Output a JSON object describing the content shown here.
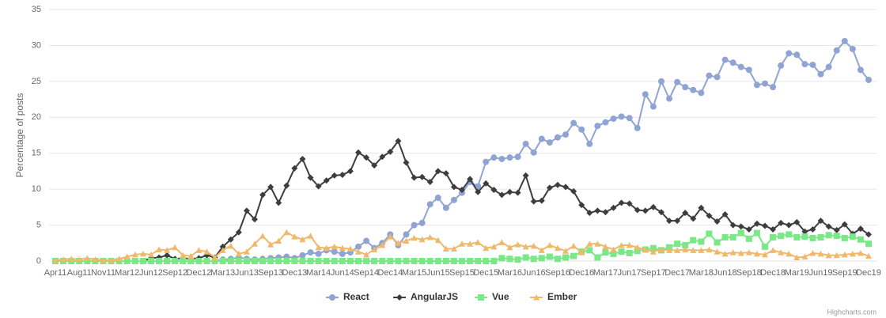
{
  "chart_data": {
    "type": "line",
    "y_axis_label": "Percentage of posts",
    "credits": "Highcharts.com",
    "ylim": [
      0,
      35
    ],
    "yticks": [
      0,
      5,
      10,
      15,
      20,
      25,
      30,
      35
    ],
    "grid": true,
    "legend": "bottom",
    "categories": [
      "Apr11",
      null,
      null,
      "Aug11",
      null,
      null,
      "Nov11",
      null,
      null,
      "Mar12",
      null,
      null,
      "Jun12",
      null,
      null,
      "Sep12",
      null,
      null,
      "Dec12",
      null,
      null,
      "Mar13",
      null,
      null,
      "Jun13",
      null,
      null,
      "Sep13",
      null,
      null,
      "Dec13",
      null,
      null,
      "Mar14",
      null,
      null,
      "Jun14",
      null,
      null,
      "Sep14",
      null,
      null,
      "Dec14",
      null,
      null,
      "Mar15",
      null,
      null,
      "Jun15",
      null,
      null,
      "Sep15",
      null,
      null,
      "Dec15",
      null,
      null,
      "Mar16",
      null,
      null,
      "Jun16",
      null,
      null,
      "Sep16",
      null,
      null,
      "Dec16",
      null,
      null,
      "Mar17",
      null,
      null,
      "Jun17",
      null,
      null,
      "Sep17",
      null,
      null,
      "Dec17",
      null,
      null,
      "Mar18",
      null,
      null,
      "Jun18",
      null,
      null,
      "Sep18",
      null,
      null,
      "Dec18",
      null,
      null,
      "Mar19",
      null,
      null,
      "Jun19",
      null,
      null,
      "Sep19",
      null,
      null,
      "Dec19"
    ],
    "series": [
      {
        "name": "React",
        "color": "#90a4d4",
        "marker": "circle",
        "values": [
          0,
          0,
          0,
          0,
          0,
          0,
          0,
          0,
          0,
          0,
          0,
          0,
          0,
          0,
          0,
          0,
          0,
          0,
          0,
          0,
          0,
          0.2,
          0.3,
          0.5,
          0.3,
          0.2,
          0.3,
          0.4,
          0.5,
          0.6,
          0.4,
          0.8,
          1.2,
          1.0,
          1.5,
          1.3,
          1.0,
          1.2,
          2.0,
          2.8,
          1.8,
          2.5,
          3.7,
          2.2,
          3.7,
          5.0,
          5.3,
          7.9,
          8.8,
          7.4,
          8.5,
          9.5,
          11.0,
          10.4,
          13.8,
          14.4,
          14.2,
          14.4,
          14.5,
          16.3,
          15.1,
          17.0,
          16.5,
          17.2,
          17.6,
          19.2,
          18.3,
          16.3,
          18.8,
          19.3,
          19.8,
          20.1,
          19.9,
          18.5,
          23.2,
          21.5,
          25.0,
          22.6,
          24.9,
          24.2,
          23.8,
          23.4,
          25.8,
          25.6,
          28.0,
          27.6,
          27.0,
          26.6,
          24.5,
          24.7,
          24.2,
          27.2,
          28.9,
          28.7,
          27.4,
          27.3,
          26.0,
          27.0,
          29.3,
          30.6,
          29.5,
          26.6,
          25.2
        ]
      },
      {
        "name": "AngularJS",
        "color": "#3d3d3d",
        "marker": "diamond",
        "values": [
          0,
          0,
          0,
          0,
          0,
          0,
          0,
          0,
          0,
          0,
          0,
          0,
          0.4,
          0.5,
          0.8,
          0.3,
          0.4,
          0.3,
          0.4,
          0.8,
          0.5,
          2.0,
          3.0,
          4.0,
          7.0,
          5.8,
          9.2,
          10.3,
          8.1,
          10.5,
          12.9,
          14.2,
          11.6,
          10.4,
          11.2,
          11.9,
          12.0,
          12.5,
          15.1,
          14.4,
          13.3,
          14.5,
          15.2,
          16.7,
          13.7,
          11.6,
          11.7,
          11.0,
          12.5,
          12.2,
          10.3,
          9.9,
          11.4,
          9.6,
          10.8,
          9.9,
          9.2,
          9.6,
          9.5,
          11.9,
          8.3,
          8.4,
          10.2,
          10.6,
          10.3,
          9.7,
          7.8,
          6.7,
          7.0,
          6.8,
          7.4,
          8.1,
          8.0,
          7.1,
          7.0,
          7.5,
          6.8,
          5.6,
          5.6,
          6.7,
          5.9,
          7.4,
          6.3,
          5.5,
          6.5,
          5.0,
          4.8,
          4.4,
          5.2,
          4.9,
          4.4,
          5.3,
          5.0,
          5.4,
          4.1,
          4.4,
          5.6,
          4.8,
          4.3,
          5.1,
          3.8,
          4.5,
          3.7
        ]
      },
      {
        "name": "Vue",
        "color": "#7ae886",
        "marker": "square",
        "values": [
          0,
          0,
          0,
          0,
          0,
          0,
          0,
          0,
          0,
          0,
          0,
          0,
          0,
          0,
          0,
          0,
          0,
          0,
          0,
          0,
          0,
          0,
          0,
          0,
          0,
          0,
          0,
          0,
          0,
          0,
          0,
          0,
          0,
          0,
          0,
          0,
          0,
          0,
          0,
          0,
          0,
          0,
          0,
          0,
          0,
          0,
          0,
          0,
          0,
          0,
          0,
          0,
          0,
          0,
          0,
          0,
          0.4,
          0.3,
          0.2,
          0.5,
          0.3,
          0.4,
          0.6,
          0.3,
          0.5,
          0.7,
          1.3,
          1.5,
          0.5,
          1.2,
          1.0,
          1.3,
          1.1,
          1.4,
          1.6,
          1.8,
          1.5,
          1.9,
          2.4,
          2.2,
          2.9,
          2.7,
          3.8,
          2.6,
          3.3,
          3.3,
          3.9,
          3.1,
          3.9,
          2.0,
          3.3,
          3.5,
          3.7,
          3.3,
          3.4,
          3.2,
          3.3,
          3.6,
          3.5,
          3.2,
          3.4,
          3.0,
          2.4
        ]
      },
      {
        "name": "Ember",
        "color": "#f0b86a",
        "marker": "triangle",
        "values": [
          0.1,
          0.2,
          0.3,
          0.2,
          0.4,
          0.2,
          0.1,
          0.1,
          0.3,
          0.6,
          0.9,
          1.0,
          0.9,
          1.6,
          1.5,
          1.9,
          0.8,
          0.7,
          1.5,
          1.3,
          0.5,
          1.5,
          2.1,
          1.0,
          1.3,
          2.4,
          3.5,
          2.3,
          2.8,
          4.0,
          3.4,
          3.0,
          3.5,
          1.9,
          1.8,
          2.0,
          1.8,
          1.7,
          1.3,
          0.9,
          1.6,
          2.2,
          3.4,
          2.5,
          2.8,
          3.2,
          3.0,
          3.3,
          2.9,
          1.7,
          1.7,
          2.4,
          2.4,
          2.6,
          1.8,
          2.0,
          2.6,
          1.9,
          2.3,
          2.0,
          2.1,
          1.5,
          2.2,
          1.8,
          1.4,
          2.1,
          1.2,
          2.4,
          2.4,
          2.0,
          1.6,
          2.2,
          2.2,
          1.9,
          1.6,
          1.3,
          1.6,
          1.5,
          1.5,
          1.6,
          1.5,
          1.5,
          1.6,
          1.3,
          1.0,
          1.2,
          1.1,
          1.2,
          1.0,
          0.9,
          1.5,
          1.2,
          1.0,
          0.5,
          0.6,
          1.1,
          1.0,
          0.8,
          0.8,
          0.9,
          1.0,
          1.1,
          0.7
        ]
      }
    ]
  }
}
